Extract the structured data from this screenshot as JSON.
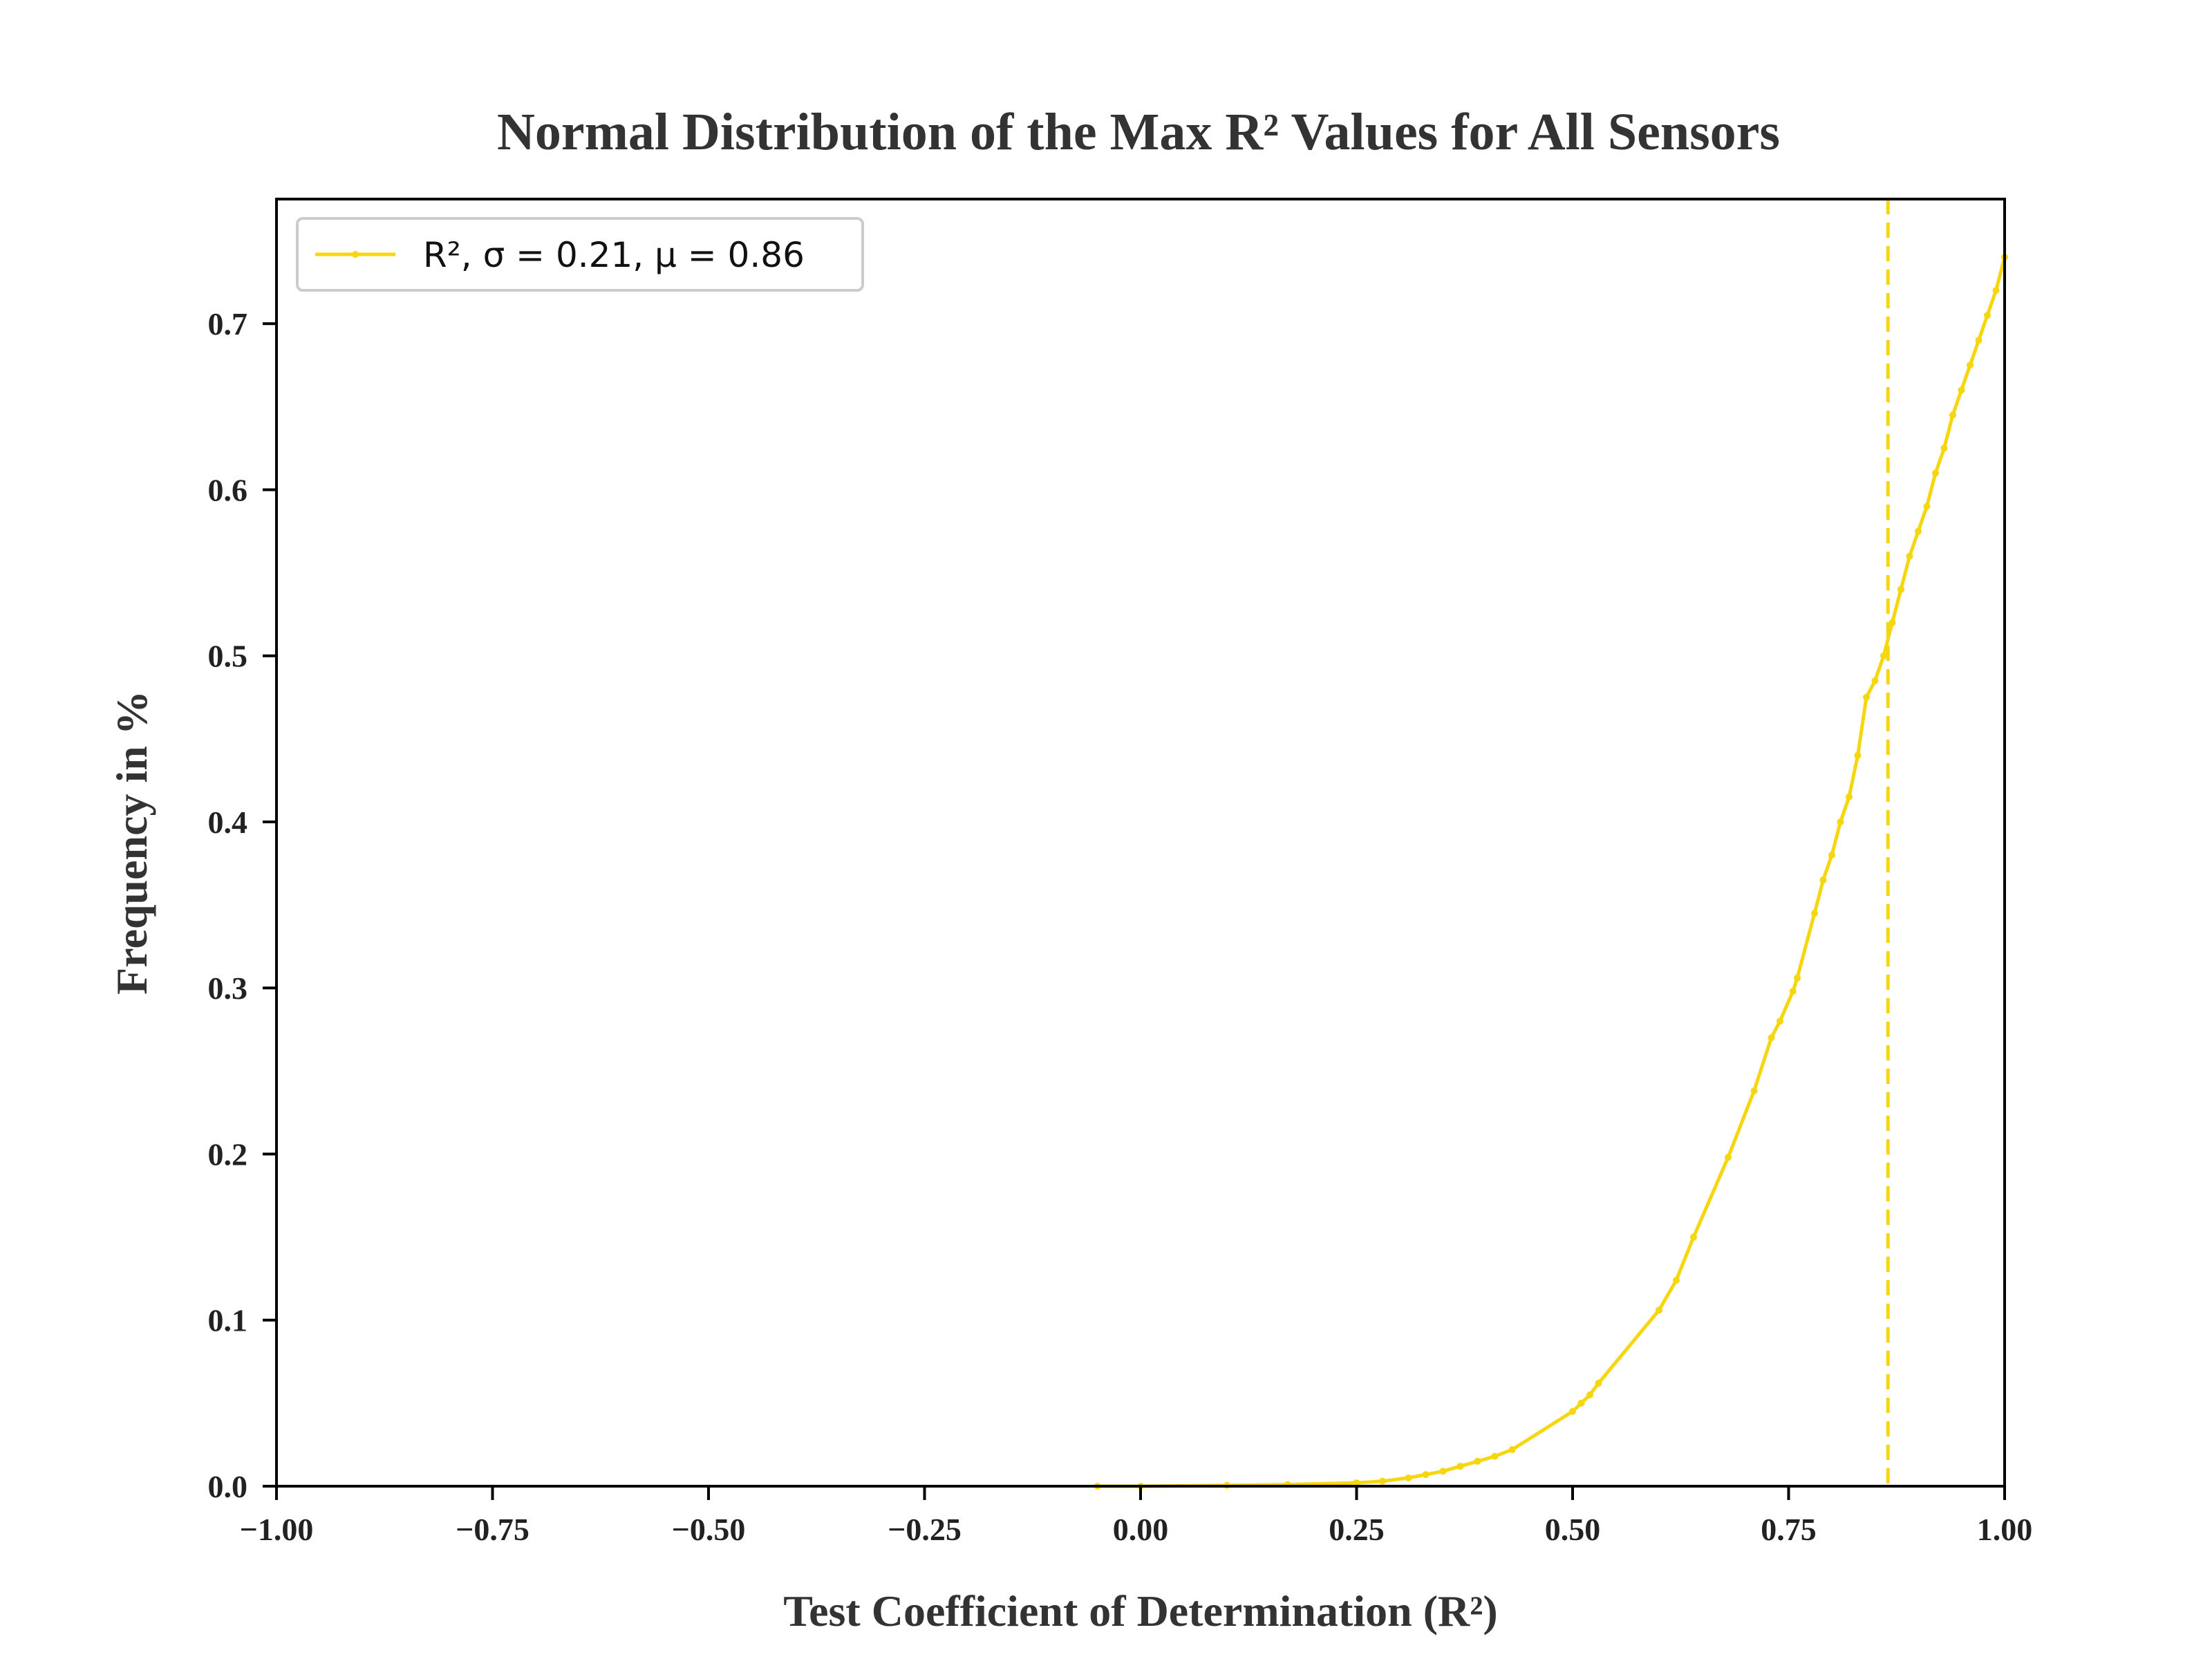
{
  "chart_data": {
    "type": "line",
    "title": "Normal Distribution of the Max R² Values for All Sensors",
    "xlabel": "Test Coefficient of Determination (R²)",
    "ylabel": "Frequency in %",
    "xlim": [
      -1.0,
      1.0
    ],
    "ylim": [
      0.0,
      0.775
    ],
    "xticks": [
      -1.0,
      -0.75,
      -0.5,
      -0.25,
      0.0,
      0.25,
      0.5,
      0.75,
      1.0
    ],
    "xtick_labels": [
      "−1.00",
      "−0.75",
      "−0.50",
      "−0.25",
      "0.00",
      "0.25",
      "0.50",
      "0.75",
      "1.00"
    ],
    "yticks": [
      0.0,
      0.1,
      0.2,
      0.3,
      0.4,
      0.5,
      0.6,
      0.7
    ],
    "ytick_labels": [
      "0.0",
      "0.1",
      "0.2",
      "0.3",
      "0.4",
      "0.5",
      "0.6",
      "0.7"
    ],
    "grid": false,
    "legend_position": "top-left",
    "series": [
      {
        "name": "R², σ = 0.21, μ = 0.86",
        "color": "#f5d60f",
        "marker": "dot",
        "x": [
          -0.05,
          0.0,
          0.1,
          0.17,
          0.25,
          0.28,
          0.31,
          0.33,
          0.35,
          0.37,
          0.39,
          0.41,
          0.43,
          0.5,
          0.51,
          0.52,
          0.53,
          0.6,
          0.62,
          0.64,
          0.68,
          0.71,
          0.73,
          0.74,
          0.755,
          0.76,
          0.78,
          0.79,
          0.8,
          0.81,
          0.82,
          0.83,
          0.84,
          0.85,
          0.86,
          0.87,
          0.88,
          0.89,
          0.9,
          0.91,
          0.92,
          0.93,
          0.94,
          0.95,
          0.96,
          0.97,
          0.98,
          0.99,
          1.0
        ],
        "y": [
          0.0,
          0.0,
          0.0005,
          0.001,
          0.002,
          0.003,
          0.005,
          0.007,
          0.009,
          0.012,
          0.015,
          0.018,
          0.022,
          0.045,
          0.05,
          0.055,
          0.062,
          0.106,
          0.124,
          0.15,
          0.198,
          0.238,
          0.27,
          0.28,
          0.298,
          0.306,
          0.345,
          0.365,
          0.38,
          0.4,
          0.415,
          0.44,
          0.475,
          0.485,
          0.5,
          0.52,
          0.54,
          0.56,
          0.575,
          0.59,
          0.61,
          0.625,
          0.645,
          0.66,
          0.675,
          0.69,
          0.705,
          0.72,
          0.74
        ]
      }
    ],
    "reference_lines": [
      {
        "orientation": "vertical",
        "x": 0.865,
        "style": "dashed",
        "color": "#f5d60f"
      }
    ]
  }
}
